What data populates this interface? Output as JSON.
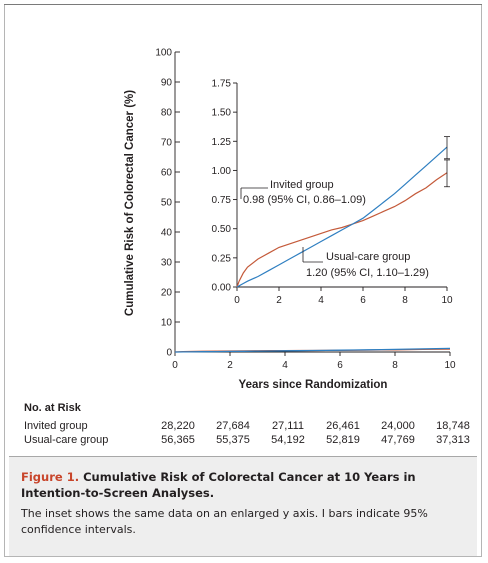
{
  "chart_data": {
    "type": "line",
    "ylabel": "Cumulative Risk of Colorectal Cancer (%)",
    "xlabel": "Years since Randomization",
    "main": {
      "xlim": [
        0,
        10
      ],
      "ylim": [
        0,
        100
      ],
      "x_ticks": [
        0,
        2,
        4,
        6,
        8,
        10
      ],
      "y_ticks": [
        0,
        10,
        20,
        30,
        40,
        50,
        60,
        70,
        80,
        90,
        100
      ],
      "x_tick_labels": [
        "0",
        "2",
        "4",
        "6",
        "8",
        "10"
      ],
      "y_tick_labels": [
        "0",
        "10",
        "20",
        "30",
        "40",
        "50",
        "60",
        "70",
        "80",
        "90",
        "100"
      ]
    },
    "inset": {
      "xlim": [
        0,
        10
      ],
      "ylim": [
        0,
        1.75
      ],
      "x_ticks": [
        0,
        2,
        4,
        6,
        8,
        10
      ],
      "y_ticks": [
        0,
        0.25,
        0.5,
        0.75,
        1.0,
        1.25,
        1.5,
        1.75
      ],
      "x_tick_labels": [
        "0",
        "2",
        "4",
        "6",
        "8",
        "10"
      ],
      "y_tick_labels": [
        "0.00",
        "0.25",
        "0.50",
        "0.75",
        "1.00",
        "1.25",
        "1.50",
        "1.75"
      ]
    },
    "series": [
      {
        "name": "Invited group",
        "color": "#c45a3a",
        "x": [
          0,
          0.1,
          0.3,
          0.5,
          1,
          1.5,
          2,
          2.5,
          3,
          3.5,
          4,
          4.5,
          5,
          5.5,
          6,
          6.5,
          7,
          7.5,
          8,
          8.5,
          9,
          9.5,
          10
        ],
        "y": [
          0,
          0.05,
          0.12,
          0.17,
          0.24,
          0.29,
          0.34,
          0.37,
          0.4,
          0.43,
          0.46,
          0.49,
          0.51,
          0.54,
          0.57,
          0.61,
          0.65,
          0.69,
          0.74,
          0.8,
          0.85,
          0.92,
          0.98
        ],
        "ci_final": [
          0.86,
          1.09
        ],
        "annotation": "0.98 (95% CI, 0.86–1.09)"
      },
      {
        "name": "Usual-care group",
        "color": "#2f7fc1",
        "x": [
          0,
          0.1,
          0.3,
          0.5,
          1,
          1.5,
          2,
          2.5,
          3,
          3.5,
          4,
          4.5,
          5,
          5.5,
          6,
          6.5,
          7,
          7.5,
          8,
          8.5,
          9,
          9.5,
          10
        ],
        "y": [
          0,
          0.01,
          0.03,
          0.05,
          0.09,
          0.14,
          0.19,
          0.24,
          0.29,
          0.34,
          0.39,
          0.44,
          0.49,
          0.54,
          0.59,
          0.66,
          0.73,
          0.8,
          0.88,
          0.96,
          1.04,
          1.12,
          1.2
        ],
        "ci_final": [
          1.1,
          1.29
        ],
        "annotation": "1.20 (95% CI, 1.10–1.29)"
      }
    ]
  },
  "risk_table": {
    "title": "No. at Risk",
    "rows": [
      {
        "label": "Invited group",
        "values": [
          "28,220",
          "27,684",
          "27,111",
          "26,461",
          "24,000",
          "18,748"
        ]
      },
      {
        "label": "Usual-care group",
        "values": [
          "56,365",
          "55,375",
          "54,192",
          "52,819",
          "47,769",
          "37,313"
        ]
      }
    ]
  },
  "caption": {
    "figure_label": "Figure 1.",
    "title": "Cumulative Risk of Colorectal Cancer at 10 Years in Intention-to-Screen Analyses.",
    "body": "The inset shows the same data on an enlarged y axis. I bars indicate 95% confidence intervals."
  }
}
